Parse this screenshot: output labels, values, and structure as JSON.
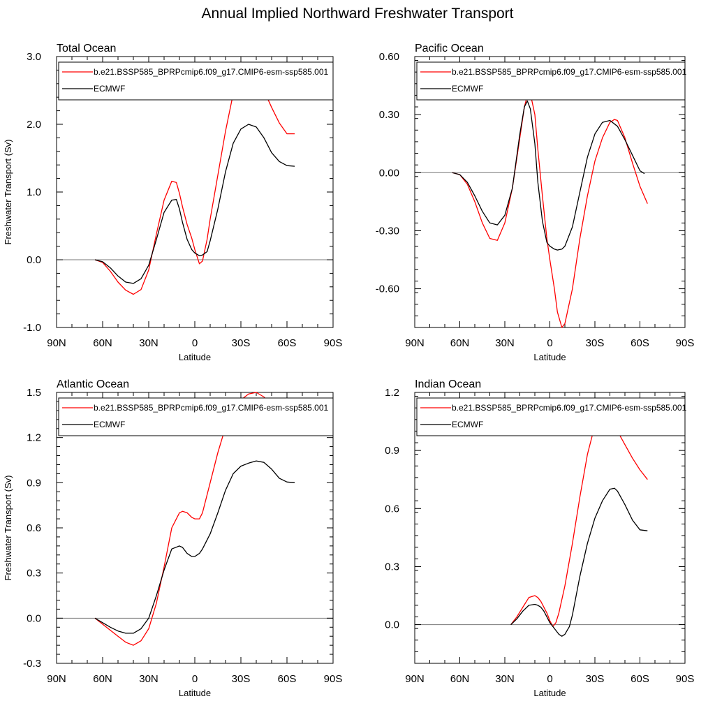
{
  "title": "Annual Implied Northward Freshwater Transport",
  "chart_data": [
    {
      "type": "line",
      "panel_title": "Total Ocean",
      "xlabel": "Latitude",
      "ylabel": "Freshwater Transport (Sv)",
      "xlim": [
        90,
        -90
      ],
      "ylim": [
        -1.0,
        3.0
      ],
      "xticks": [
        90,
        60,
        30,
        0,
        -30,
        -60,
        -90
      ],
      "xticklabels": [
        "90N",
        "60N",
        "30N",
        "0",
        "30S",
        "60S",
        "90S"
      ],
      "yticks": [
        -1.0,
        0.0,
        1.0,
        2.0,
        3.0
      ],
      "yticklabels": [
        "-1.0",
        "0.0",
        "1.0",
        "2.0",
        "3.0"
      ],
      "zero_line": true,
      "legend_position": "top",
      "series": [
        {
          "name": "b.e21.BSSP585_BPRPcmip6.f09_g17.CMIP6-esm-ssp585.001",
          "color": "#ff0000",
          "x": [
            65,
            60,
            55,
            50,
            45,
            40,
            35,
            30,
            25,
            20,
            15,
            12,
            10,
            8,
            5,
            2,
            0,
            -3,
            -5,
            -8,
            -10,
            -15,
            -20,
            -25,
            -30,
            -35,
            -40,
            -45,
            -50,
            -55,
            -60,
            -65
          ],
          "y": [
            0,
            -0.04,
            -0.17,
            -0.33,
            -0.45,
            -0.51,
            -0.44,
            -0.15,
            0.38,
            0.88,
            1.16,
            1.14,
            0.98,
            0.78,
            0.52,
            0.32,
            0.15,
            -0.06,
            -0.02,
            0.3,
            0.6,
            1.25,
            1.9,
            2.45,
            2.78,
            2.86,
            2.74,
            2.5,
            2.25,
            2.02,
            1.86,
            1.86
          ]
        },
        {
          "name": "ECMWF",
          "color": "#000000",
          "x": [
            65,
            60,
            55,
            50,
            45,
            40,
            35,
            30,
            25,
            20,
            15,
            12,
            10,
            8,
            5,
            2,
            0,
            -3,
            -5,
            -8,
            -10,
            -15,
            -20,
            -25,
            -30,
            -35,
            -40,
            -45,
            -50,
            -55,
            -60,
            -65
          ],
          "y": [
            0,
            -0.03,
            -0.12,
            -0.24,
            -0.33,
            -0.35,
            -0.28,
            -0.08,
            0.3,
            0.7,
            0.88,
            0.89,
            0.75,
            0.55,
            0.3,
            0.15,
            0.1,
            0.06,
            0.07,
            0.12,
            0.28,
            0.75,
            1.3,
            1.72,
            1.93,
            2.0,
            1.96,
            1.8,
            1.58,
            1.45,
            1.39,
            1.38
          ]
        }
      ]
    },
    {
      "type": "line",
      "panel_title": "Pacific Ocean",
      "xlabel": "Latitude",
      "ylabel": "",
      "xlim": [
        90,
        -90
      ],
      "ylim": [
        -0.8,
        0.6
      ],
      "xticks": [
        90,
        60,
        30,
        0,
        -30,
        -60,
        -90
      ],
      "xticklabels": [
        "90N",
        "60N",
        "30N",
        "0",
        "30S",
        "60S",
        "90S"
      ],
      "yticks": [
        -0.6,
        -0.3,
        0.0,
        0.3,
        0.6
      ],
      "yticklabels": [
        "-0.60",
        "-0.30",
        "0.00",
        "0.30",
        "0.60"
      ],
      "zero_line": true,
      "legend_position": "top",
      "series": [
        {
          "name": "b.e21.BSSP585_BPRPcmip6.f09_g17.CMIP6-esm-ssp585.001",
          "color": "#ff0000",
          "x": [
            65,
            60,
            55,
            50,
            45,
            40,
            35,
            30,
            25,
            20,
            17,
            15,
            13,
            10,
            8,
            5,
            2,
            0,
            -3,
            -5,
            -8,
            -10,
            -15,
            -20,
            -25,
            -30,
            -35,
            -40,
            -43,
            -45,
            -50,
            -55,
            -60,
            -65
          ],
          "y": [
            0,
            -0.01,
            -0.06,
            -0.15,
            -0.26,
            -0.34,
            -0.35,
            -0.26,
            -0.08,
            0.18,
            0.34,
            0.4,
            0.41,
            0.3,
            0.12,
            -0.12,
            -0.34,
            -0.45,
            -0.6,
            -0.72,
            -0.8,
            -0.78,
            -0.6,
            -0.34,
            -0.12,
            0.06,
            0.18,
            0.26,
            0.275,
            0.27,
            0.18,
            0.05,
            -0.07,
            -0.16
          ]
        },
        {
          "name": "ECMWF",
          "color": "#000000",
          "x": [
            65,
            60,
            55,
            50,
            45,
            40,
            35,
            30,
            25,
            20,
            17,
            15,
            13,
            10,
            8,
            5,
            2,
            0,
            -3,
            -5,
            -8,
            -10,
            -15,
            -20,
            -25,
            -30,
            -35,
            -40,
            -45,
            -50,
            -55,
            -60,
            -63
          ],
          "y": [
            0,
            -0.01,
            -0.05,
            -0.12,
            -0.2,
            -0.26,
            -0.27,
            -0.22,
            -0.08,
            0.2,
            0.34,
            0.37,
            0.33,
            0.15,
            -0.05,
            -0.25,
            -0.36,
            -0.38,
            -0.395,
            -0.4,
            -0.395,
            -0.38,
            -0.28,
            -0.1,
            0.08,
            0.2,
            0.26,
            0.27,
            0.24,
            0.17,
            0.09,
            0.01,
            -0.005
          ]
        }
      ]
    },
    {
      "type": "line",
      "panel_title": "Atlantic Ocean",
      "xlabel": "Latitude",
      "ylabel": "Freshwater Transport (Sv)",
      "xlim": [
        90,
        -90
      ],
      "ylim": [
        -0.3,
        1.5
      ],
      "xticks": [
        90,
        60,
        30,
        0,
        -30,
        -60,
        -90
      ],
      "xticklabels": [
        "90N",
        "60N",
        "30N",
        "0",
        "30S",
        "60S",
        "90S"
      ],
      "yticks": [
        -0.3,
        0.0,
        0.3,
        0.6,
        0.9,
        1.2,
        1.5
      ],
      "yticklabels": [
        "-0.3",
        "0.0",
        "0.3",
        "0.6",
        "0.9",
        "1.2",
        "1.5"
      ],
      "zero_line": true,
      "legend_position": "top",
      "series": [
        {
          "name": "b.e21.BSSP585_BPRPcmip6.f09_g17.CMIP6-esm-ssp585.001",
          "color": "#ff0000",
          "x": [
            65,
            60,
            55,
            50,
            45,
            40,
            35,
            30,
            25,
            20,
            15,
            10,
            8,
            5,
            2,
            0,
            -3,
            -5,
            -10,
            -15,
            -20,
            -25,
            -30,
            -35,
            -40,
            -45,
            -50,
            -55,
            -60,
            -65
          ],
          "y": [
            0,
            -0.04,
            -0.08,
            -0.12,
            -0.16,
            -0.18,
            -0.15,
            -0.07,
            0.1,
            0.34,
            0.6,
            0.7,
            0.71,
            0.7,
            0.67,
            0.66,
            0.66,
            0.7,
            0.9,
            1.1,
            1.27,
            1.38,
            1.45,
            1.49,
            1.5,
            1.47,
            1.41,
            1.35,
            1.3,
            1.27
          ]
        },
        {
          "name": "ECMWF",
          "color": "#000000",
          "x": [
            65,
            60,
            55,
            50,
            45,
            40,
            35,
            30,
            25,
            20,
            15,
            10,
            8,
            5,
            2,
            0,
            -3,
            -5,
            -10,
            -15,
            -20,
            -25,
            -30,
            -35,
            -40,
            -45,
            -50,
            -55,
            -60,
            -65
          ],
          "y": [
            0,
            -0.03,
            -0.06,
            -0.085,
            -0.1,
            -0.1,
            -0.07,
            0.0,
            0.15,
            0.32,
            0.46,
            0.48,
            0.47,
            0.43,
            0.41,
            0.41,
            0.43,
            0.46,
            0.56,
            0.7,
            0.85,
            0.96,
            1.01,
            1.03,
            1.045,
            1.035,
            0.99,
            0.93,
            0.905,
            0.9
          ]
        }
      ]
    },
    {
      "type": "line",
      "panel_title": "Indian Ocean",
      "xlabel": "Latitude",
      "ylabel": "",
      "xlim": [
        90,
        -90
      ],
      "ylim": [
        -0.2,
        1.2
      ],
      "xticks": [
        90,
        60,
        30,
        0,
        -30,
        -60,
        -90
      ],
      "xticklabels": [
        "90N",
        "60N",
        "30N",
        "0",
        "30S",
        "60S",
        "90S"
      ],
      "yticks": [
        0.0,
        0.3,
        0.6,
        0.9,
        1.2
      ],
      "yticklabels": [
        "0.0",
        "0.3",
        "0.6",
        "0.9",
        "1.2"
      ],
      "zero_line": true,
      "legend_position": "top",
      "series": [
        {
          "name": "b.e21.BSSP585_BPRPcmip6.f09_g17.CMIP6-esm-ssp585.001",
          "color": "#ff0000",
          "x": [
            26,
            22,
            18,
            14,
            10,
            8,
            6,
            4,
            2,
            0,
            -2,
            -4,
            -6,
            -10,
            -15,
            -20,
            -25,
            -30,
            -35,
            -40,
            -45,
            -50,
            -55,
            -60,
            -65
          ],
          "y": [
            0,
            0.04,
            0.09,
            0.14,
            0.15,
            0.14,
            0.12,
            0.09,
            0.06,
            0.02,
            -0.01,
            0.01,
            0.06,
            0.2,
            0.42,
            0.66,
            0.88,
            1.03,
            1.09,
            1.08,
            1.0,
            0.93,
            0.86,
            0.8,
            0.75
          ]
        },
        {
          "name": "ECMWF",
          "color": "#000000",
          "x": [
            26,
            22,
            18,
            14,
            10,
            8,
            6,
            4,
            2,
            0,
            -3,
            -6,
            -8,
            -10,
            -13,
            -15,
            -20,
            -25,
            -30,
            -35,
            -40,
            -43,
            -45,
            -50,
            -55,
            -60,
            -65
          ],
          "y": [
            0,
            0.03,
            0.07,
            0.1,
            0.105,
            0.1,
            0.09,
            0.07,
            0.04,
            0.01,
            -0.02,
            -0.05,
            -0.06,
            -0.05,
            -0.01,
            0.05,
            0.25,
            0.42,
            0.55,
            0.64,
            0.7,
            0.705,
            0.69,
            0.62,
            0.54,
            0.49,
            0.485
          ]
        }
      ]
    }
  ]
}
